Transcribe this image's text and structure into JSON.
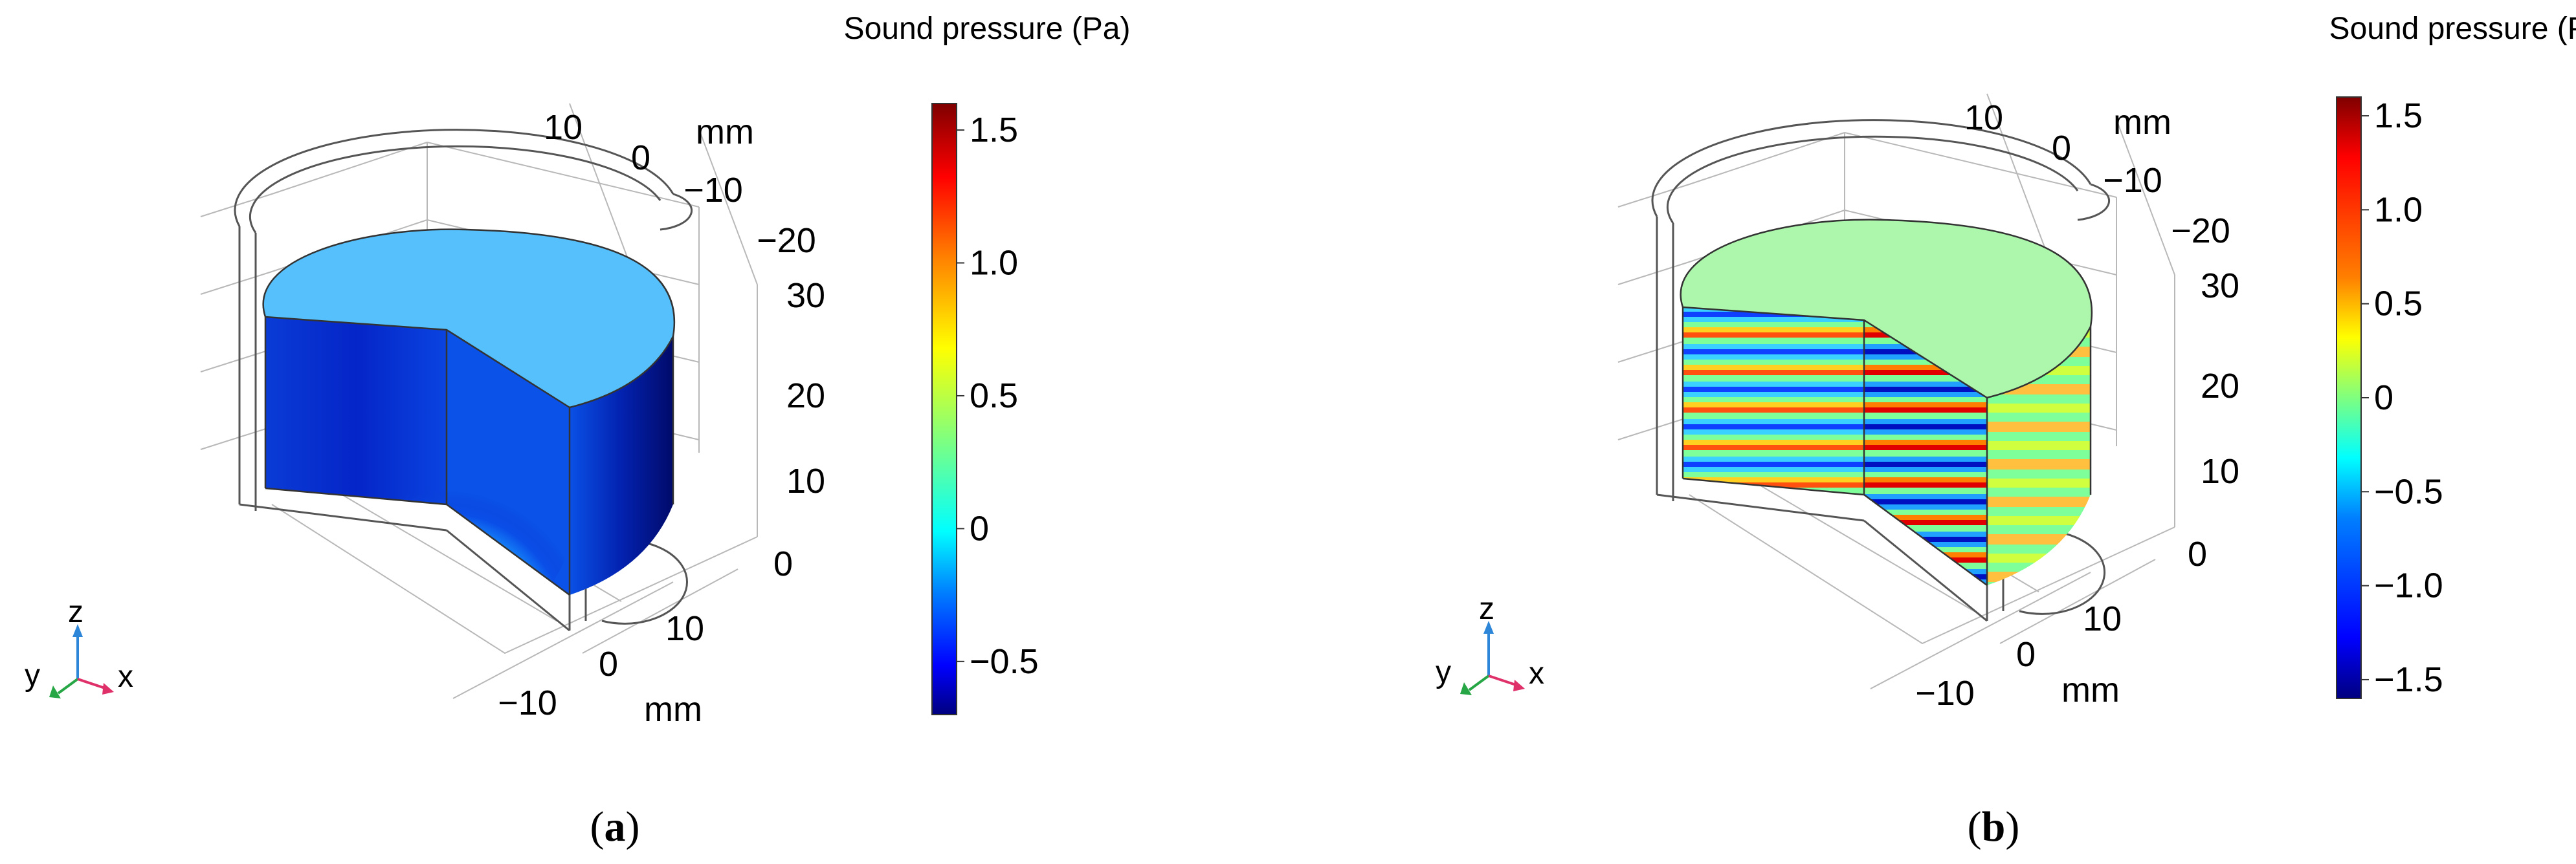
{
  "colormap": [
    "#00007f",
    "#0000ff",
    "#007fff",
    "#00ffff",
    "#7fff7f",
    "#ffff00",
    "#ff7f00",
    "#ff0000",
    "#7f0000"
  ],
  "panels": [
    {
      "id": "a",
      "label_open": "(",
      "label_letter": "a",
      "label_close": ")",
      "colorbar_title": "Sound pressure (Pa)",
      "colorbar_ticks": [
        "1.5",
        "1.0",
        "0.5",
        "0",
        "−0.5"
      ],
      "colorbar_range": [
        -0.7,
        1.6
      ],
      "axis_x_ticks": [
        "10",
        "0",
        "−10"
      ],
      "axis_x_unit": "mm",
      "axis_y_ticks": [
        "10",
        "0",
        "−10",
        "−20"
      ],
      "axis_y_unit": "mm",
      "axis_z_ticks": [
        "30",
        "20",
        "10",
        "0"
      ],
      "triad": {
        "z": "z",
        "y": "y",
        "x": "x"
      }
    },
    {
      "id": "b",
      "label_open": "(",
      "label_letter": "b",
      "label_close": ")",
      "colorbar_title": "Sound pressure (Pa)",
      "colorbar_ticks": [
        "1.5",
        "1.0",
        "0.5",
        "0",
        "−0.5",
        "−1.0",
        "−1.5"
      ],
      "colorbar_range": [
        -1.6,
        1.6
      ],
      "axis_x_ticks": [
        "10",
        "0",
        "−10"
      ],
      "axis_x_unit": "mm",
      "axis_y_ticks": [
        "10",
        "0",
        "−10",
        "−20"
      ],
      "axis_y_unit": "mm",
      "axis_z_ticks": [
        "30",
        "20",
        "10",
        "0"
      ],
      "triad": {
        "z": "z",
        "y": "y",
        "x": "x"
      }
    }
  ]
}
